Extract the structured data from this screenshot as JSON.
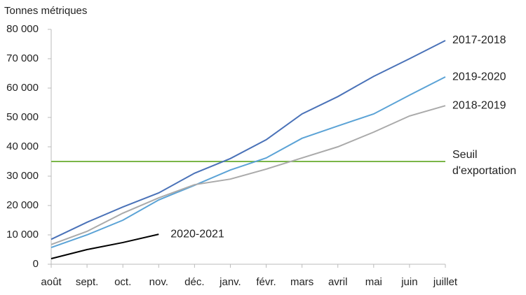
{
  "chart_data": {
    "type": "line",
    "y_label": "Tonnes métriques",
    "categories": [
      "août",
      "sept.",
      "oct.",
      "nov.",
      "déc.",
      "janv.",
      "févr.",
      "mars",
      "avril",
      "mai",
      "juin",
      "juillet"
    ],
    "series": [
      {
        "name": "2017-2018",
        "color": "#4a72b8",
        "values": [
          8500,
          14300,
          19500,
          24300,
          31000,
          36000,
          42400,
          51200,
          57100,
          64000,
          70000,
          76200
        ]
      },
      {
        "name": "2019-2020",
        "color": "#5ba3d6",
        "values": [
          5700,
          10000,
          15000,
          21900,
          26900,
          32100,
          36200,
          42900,
          47100,
          51200,
          57600,
          63800
        ]
      },
      {
        "name": "2018-2019",
        "color": "#aaaaaa",
        "values": [
          6700,
          11200,
          17400,
          22600,
          27100,
          29000,
          32400,
          36200,
          40000,
          45000,
          50500,
          54000
        ]
      },
      {
        "name": "2020-2021",
        "color": "#000000",
        "values": [
          1900,
          5000,
          7400,
          10200,
          null,
          null,
          null,
          null,
          null,
          null,
          null,
          null
        ]
      }
    ],
    "threshold": {
      "value": 35000,
      "label": [
        "Seuil",
        "d'exportation"
      ],
      "color": "#7ab648"
    },
    "ylim": [
      0,
      80000
    ],
    "yticks": [
      {
        "value": 0,
        "label": "0"
      },
      {
        "value": 10000,
        "label": "10 000"
      },
      {
        "value": 20000,
        "label": "20 000"
      },
      {
        "value": 30000,
        "label": "30 000"
      },
      {
        "value": 40000,
        "label": "40 000"
      },
      {
        "value": 50000,
        "label": "50 000"
      },
      {
        "value": 60000,
        "label": "60 000"
      },
      {
        "value": 70000,
        "label": "70 000"
      },
      {
        "value": 80000,
        "label": "80 000"
      }
    ],
    "grid": false
  }
}
